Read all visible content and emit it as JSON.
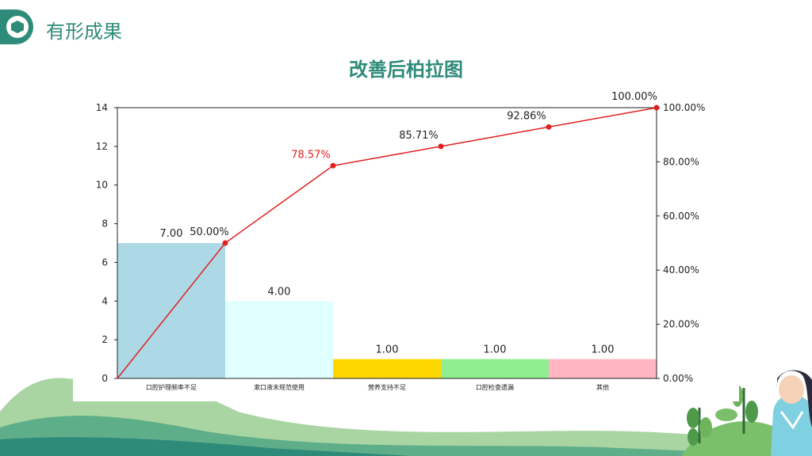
{
  "header": {
    "section_title": "有形成果",
    "badge_icon": "hexagon-icon"
  },
  "main": {
    "title": "改善后柏拉图"
  },
  "colors": {
    "accent": "#2e8b7a",
    "line": "#e02020"
  },
  "chart_data": {
    "type": "bar",
    "categories": [
      "口腔护理频率不足",
      "漱口液未规范使用",
      "营养支持不足",
      "口腔检查遗漏",
      "其他"
    ],
    "values": [
      7,
      4,
      1,
      1,
      1
    ],
    "value_labels": [
      "7.00",
      "4.00",
      "1.00",
      "1.00",
      "1.00"
    ],
    "bar_colors": [
      "#add8e6",
      "#e0ffff",
      "#ffd700",
      "#90ee90",
      "#ffb6c1"
    ],
    "cumulative_percent": [
      0,
      50.0,
      78.57,
      85.71,
      92.86,
      100.0
    ],
    "cumulative_labels": [
      "50.00%",
      "78.57%",
      "85.71%",
      "92.86%",
      "100.00%"
    ],
    "highlight_label_color": "#e02020",
    "ylim": [
      0,
      14
    ],
    "yticks": [
      "0",
      "2",
      "4",
      "6",
      "8",
      "10",
      "12",
      "14"
    ],
    "y2lim": [
      0,
      100
    ],
    "y2ticks": [
      "0.00%",
      "20.00%",
      "40.00%",
      "60.00%",
      "80.00%",
      "100.00%"
    ],
    "grid": false
  }
}
